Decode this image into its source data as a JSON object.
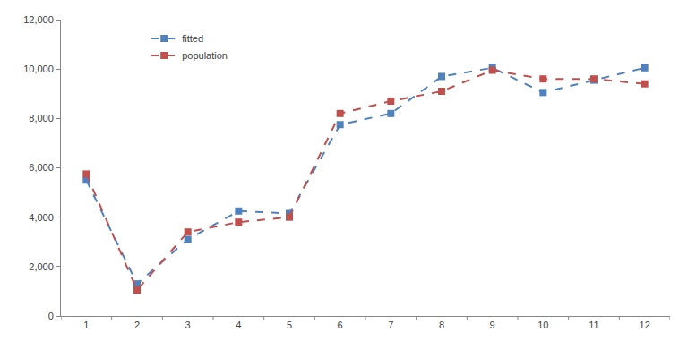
{
  "chart_data": {
    "type": "line",
    "categories": [
      "1",
      "2",
      "3",
      "4",
      "5",
      "6",
      "7",
      "8",
      "9",
      "10",
      "11",
      "12"
    ],
    "series": [
      {
        "name": "fitted",
        "color": "#4f81bd",
        "marker": "square",
        "line_style": "dash",
        "values": [
          5500,
          1300,
          3100,
          4250,
          4150,
          7750,
          8200,
          9700,
          10050,
          9050,
          9550,
          10050
        ]
      },
      {
        "name": "population",
        "color": "#c0504d",
        "marker": "square",
        "line_style": "dash",
        "values": [
          5750,
          1050,
          3400,
          3800,
          4000,
          8200,
          8700,
          9100,
          9950,
          9600,
          9600,
          9400
        ]
      }
    ],
    "ylim": [
      0,
      12000
    ],
    "yticks": [
      0,
      {
        "value": 2000,
        "label": "2,000"
      },
      {
        "value": 4000,
        "label": "4,000"
      },
      {
        "value": 6000,
        "label": "6,000"
      },
      {
        "value": 8000,
        "label": "8,000"
      },
      {
        "value": 10000,
        "label": "10,000"
      },
      {
        "value": 12000,
        "label": "12,000"
      }
    ],
    "grid": false,
    "legend": "top left"
  }
}
